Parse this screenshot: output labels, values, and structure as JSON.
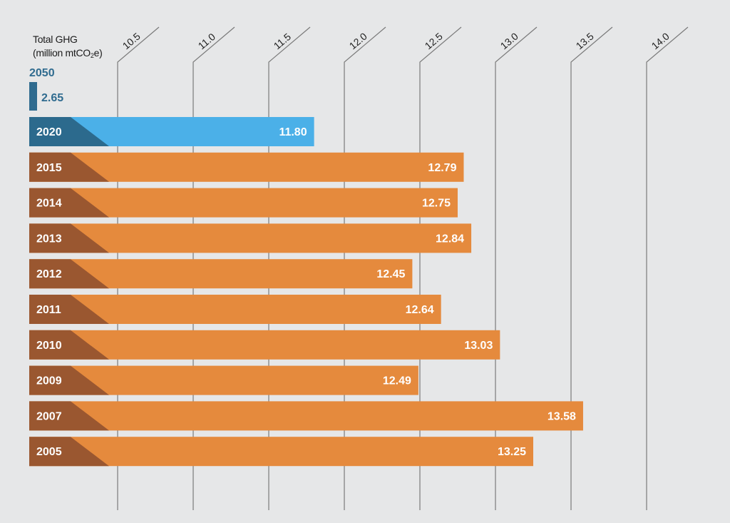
{
  "chart_data": {
    "type": "bar",
    "orientation": "horizontal",
    "ylabel_line1": "Total GHG",
    "ylabel_line2_pre": "(million mtCO",
    "ylabel_line2_sub": "2",
    "ylabel_line2_post": "e)",
    "xlim": [
      10.0,
      14.0
    ],
    "ticks": [
      "10.5",
      "11.0",
      "11.5",
      "12.0",
      "12.5",
      "13.0",
      "13.5",
      "14.0"
    ],
    "target": {
      "year": "2050",
      "value": 2.65,
      "label": "2.65"
    },
    "bars": [
      {
        "year": "2020",
        "value": 11.8,
        "label": "11.80",
        "highlight": true
      },
      {
        "year": "2015",
        "value": 12.79,
        "label": "12.79"
      },
      {
        "year": "2014",
        "value": 12.75,
        "label": "12.75"
      },
      {
        "year": "2013",
        "value": 12.84,
        "label": "12.84"
      },
      {
        "year": "2012",
        "value": 12.45,
        "label": "12.45"
      },
      {
        "year": "2011",
        "value": 12.64,
        "label": "12.64"
      },
      {
        "year": "2010",
        "value": 13.03,
        "label": "13.03"
      },
      {
        "year": "2009",
        "value": 12.49,
        "label": "12.49"
      },
      {
        "year": "2007",
        "value": 13.58,
        "label": "13.58"
      },
      {
        "year": "2005",
        "value": 13.25,
        "label": "13.25"
      }
    ],
    "colors": {
      "bar": "#e58a3d",
      "bar_tab": "#9a5730",
      "highlight": "#4bb0e8",
      "highlight_tab": "#2c6a8d",
      "target": "#2f6b8f",
      "tick": "#7a7a7a"
    }
  }
}
